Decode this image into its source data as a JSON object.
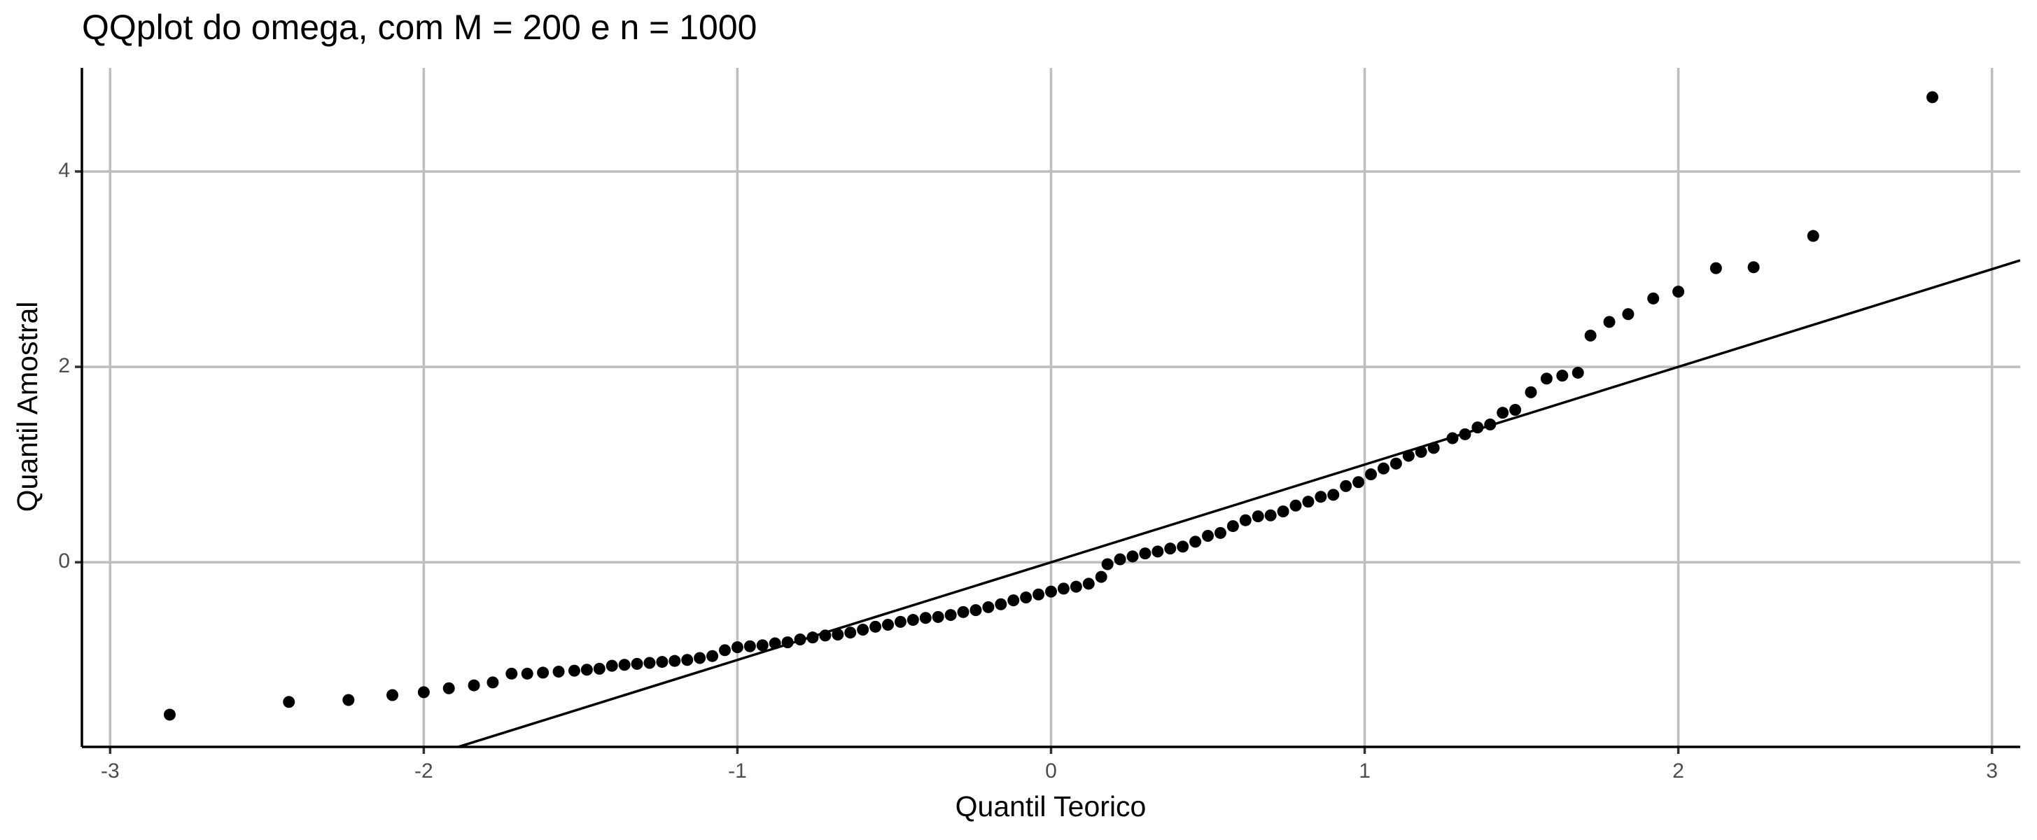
{
  "chart_data": {
    "type": "scatter",
    "title": "QQplot do omega, com M = 200 e n = 1000",
    "x_label": "Quantil Teorico",
    "y_label": "Quantil Amostral",
    "color": "#000000",
    "grid": true,
    "xlim": [
      -3.09,
      3.09
    ],
    "ylim": [
      -1.89,
      5.06
    ],
    "xticks": [
      -3,
      -2,
      -1,
      0,
      1,
      2,
      3
    ],
    "yticks": [
      0,
      2,
      4
    ],
    "line": {
      "intercept": 0,
      "slope": 1
    },
    "x": [
      -2.81,
      -2.43,
      -2.24,
      -2.1,
      -2.0,
      -1.92,
      -1.84,
      -1.78,
      -1.72,
      -1.67,
      -1.62,
      -1.57,
      -1.52,
      -1.48,
      -1.44,
      -1.4,
      -1.36,
      -1.32,
      -1.28,
      -1.24,
      -1.2,
      -1.16,
      -1.12,
      -1.08,
      -1.04,
      -1.0,
      -0.96,
      -0.92,
      -0.88,
      -0.84,
      -0.8,
      -0.76,
      -0.72,
      -0.68,
      -0.64,
      -0.6,
      -0.56,
      -0.52,
      -0.48,
      -0.44,
      -0.4,
      -0.36,
      -0.32,
      -0.28,
      -0.24,
      -0.2,
      -0.16,
      -0.12,
      -0.08,
      -0.04,
      0.0,
      0.04,
      0.08,
      0.12,
      0.16,
      0.18,
      0.22,
      0.26,
      0.3,
      0.34,
      0.38,
      0.42,
      0.46,
      0.5,
      0.54,
      0.58,
      0.62,
      0.66,
      0.7,
      0.74,
      0.78,
      0.82,
      0.86,
      0.9,
      0.94,
      0.98,
      1.02,
      1.06,
      1.1,
      1.14,
      1.18,
      1.22,
      1.28,
      1.32,
      1.36,
      1.4,
      1.44,
      1.48,
      1.53,
      1.58,
      1.63,
      1.68,
      1.72,
      1.78,
      1.84,
      1.92,
      2.0,
      2.12,
      2.24,
      2.43,
      2.81
    ],
    "values": [
      -1.56,
      -1.43,
      -1.41,
      -1.36,
      -1.33,
      -1.29,
      -1.26,
      -1.23,
      -1.14,
      -1.14,
      -1.13,
      -1.12,
      -1.11,
      -1.1,
      -1.09,
      -1.06,
      -1.05,
      -1.04,
      -1.03,
      -1.02,
      -1.01,
      -1.0,
      -0.98,
      -0.96,
      -0.9,
      -0.87,
      -0.86,
      -0.85,
      -0.83,
      -0.82,
      -0.79,
      -0.77,
      -0.75,
      -0.74,
      -0.72,
      -0.69,
      -0.66,
      -0.64,
      -0.61,
      -0.59,
      -0.57,
      -0.56,
      -0.54,
      -0.51,
      -0.49,
      -0.46,
      -0.43,
      -0.39,
      -0.36,
      -0.33,
      -0.3,
      -0.27,
      -0.25,
      -0.22,
      -0.15,
      -0.02,
      0.03,
      0.06,
      0.09,
      0.11,
      0.14,
      0.16,
      0.21,
      0.27,
      0.3,
      0.37,
      0.43,
      0.47,
      0.48,
      0.52,
      0.58,
      0.62,
      0.67,
      0.69,
      0.78,
      0.82,
      0.9,
      0.96,
      1.01,
      1.09,
      1.13,
      1.17,
      1.27,
      1.31,
      1.38,
      1.41,
      1.53,
      1.56,
      1.74,
      1.88,
      1.91,
      1.94,
      2.32,
      2.46,
      2.54,
      2.7,
      2.77,
      3.01,
      3.02,
      3.34,
      4.76
    ]
  }
}
